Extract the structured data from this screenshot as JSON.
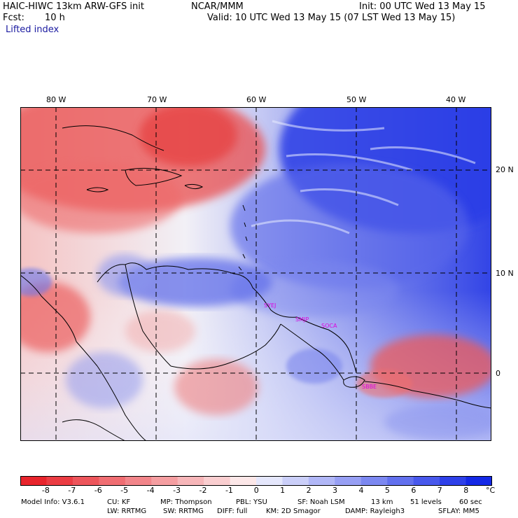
{
  "header": {
    "model_title": "HAIC-HIWC 13km ARW-GFS init",
    "org": "NCAR/MMM",
    "init": "Init: 00 UTC Wed 13 May 15",
    "forecast_label": "Fcst:",
    "forecast_value": "10 h",
    "valid": "Valid: 10 UTC Wed 13 May 15 (07 LST Wed 13 May 15)",
    "field": "Lifted index"
  },
  "map": {
    "longitude_labels": [
      "80 W",
      "70 W",
      "60 W",
      "50 W",
      "40 W"
    ],
    "latitude_labels": [
      "20 N",
      "10 N",
      "0"
    ],
    "stations": [
      "SYEJ",
      "SMJP",
      "SOCA",
      "SBBE"
    ],
    "colors": {
      "unstable": "#e8242c",
      "neutral": "#ffffff",
      "stable": "#1428e6",
      "station": "#dd00dd"
    }
  },
  "colorbar": {
    "ticks": [
      "-8",
      "-7",
      "-6",
      "-5",
      "-4",
      "-3",
      "-2",
      "-1",
      "0",
      "1",
      "2",
      "3",
      "4",
      "5",
      "6",
      "7",
      "8"
    ],
    "unit": "°C"
  },
  "footer": {
    "line1": [
      "Model Info: V3.6.1",
      "CU: KF",
      "MP: Thompson",
      "PBL: YSU",
      "SF: Noah LSM",
      "13 km",
      "51 levels",
      "60 sec"
    ],
    "line2": [
      "LW: RRTMG",
      "SW: RRTMG",
      "DIFF: full",
      "KM: 2D Smagor",
      "DAMP: Rayleigh3",
      "SFLAY: MM5"
    ]
  }
}
